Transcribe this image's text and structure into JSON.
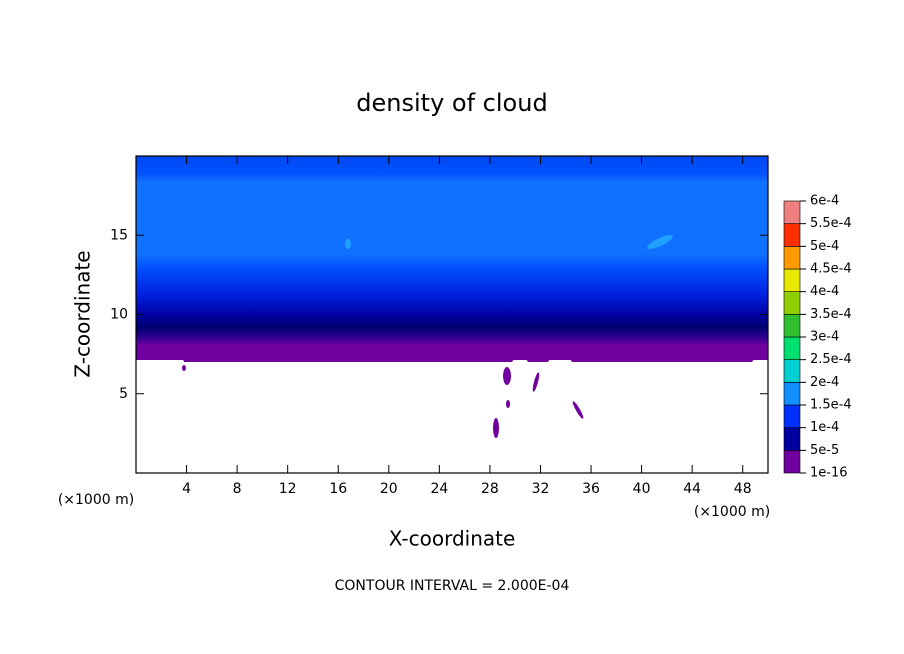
{
  "chart_data": {
    "type": "contour",
    "title": "density of cloud",
    "x_label": "X-coordinate",
    "y_label": "Z-coordinate",
    "x_unit_label": "(×1000 m)",
    "y_unit_label": "(×1000 m)",
    "annotation": "CONTOUR INTERVAL = 2.000E-04",
    "xlim": [
      0,
      50
    ],
    "ylim": [
      0,
      20
    ],
    "xticks": [
      4,
      8,
      12,
      16,
      20,
      24,
      28,
      32,
      36,
      40,
      44,
      48
    ],
    "yticks": [
      5,
      10,
      15
    ],
    "colorbar_ticks": [
      {
        "value": 1e-16,
        "label": "1e-16"
      },
      {
        "value": 5e-05,
        "label": "5e-5"
      },
      {
        "value": 0.0001,
        "label": "1e-4"
      },
      {
        "value": 0.00015,
        "label": "1.5e-4"
      },
      {
        "value": 0.0002,
        "label": "2e-4"
      },
      {
        "value": 0.00025,
        "label": "2.5e-4"
      },
      {
        "value": 0.0003,
        "label": "3e-4"
      },
      {
        "value": 0.00035,
        "label": "3.5e-4"
      },
      {
        "value": 0.0004,
        "label": "4e-4"
      },
      {
        "value": 0.00045,
        "label": "4.5e-4"
      },
      {
        "value": 0.0005,
        "label": "5e-4"
      },
      {
        "value": 0.00055,
        "label": "5.5e-4"
      },
      {
        "value": 0.0006,
        "label": "6e-4"
      }
    ],
    "colorbar_colors": [
      "#7000a0",
      "#0000a0",
      "#0030ff",
      "#1090ff",
      "#00d0d0",
      "#00e070",
      "#30c030",
      "#90d000",
      "#e8e800",
      "#ff9900",
      "#ff3000",
      "#f08080"
    ]
  }
}
